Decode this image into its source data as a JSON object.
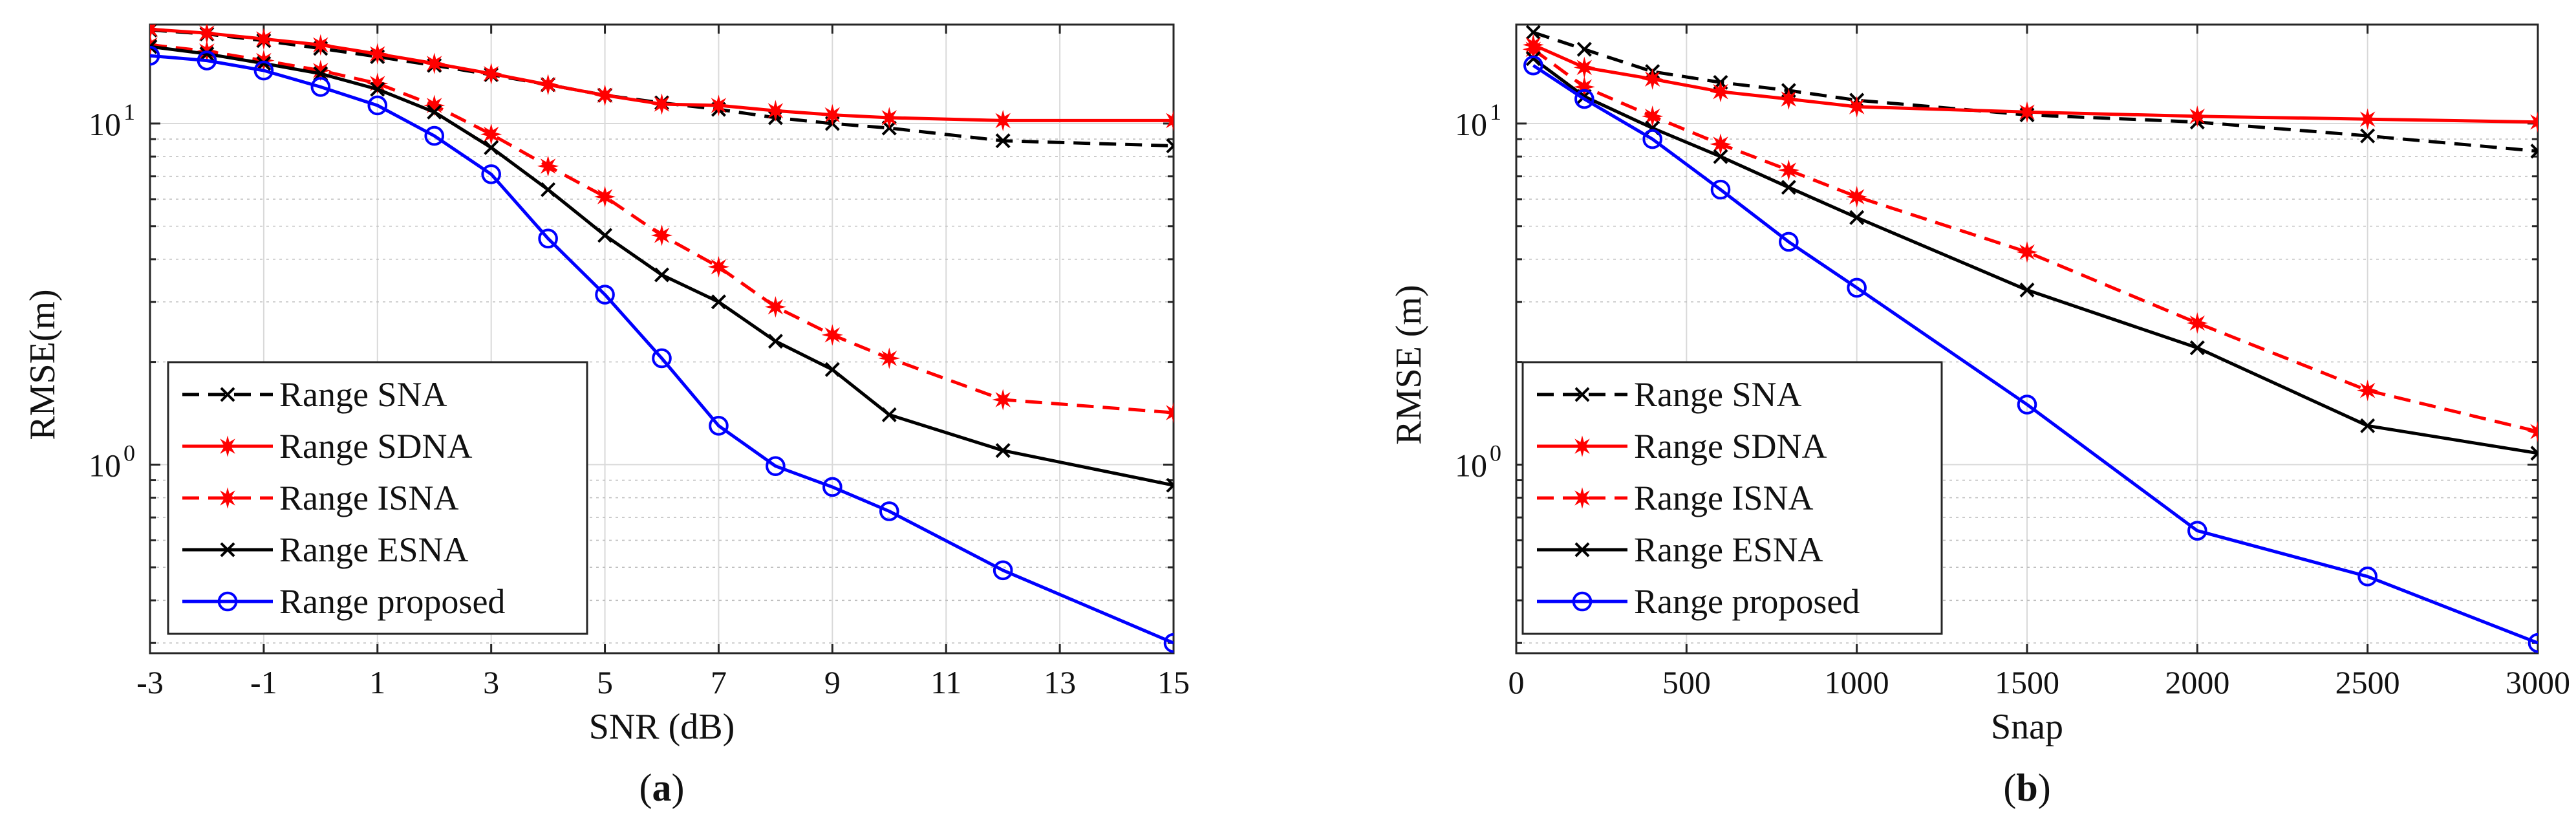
{
  "chart_data": [
    {
      "type": "line",
      "panel_label": "a",
      "xlabel": "SNR (dB)",
      "ylabel": "RMSE(m)",
      "yscale": "log",
      "xlim": [
        -3,
        15
      ],
      "ylim": [
        0.28,
        19.5
      ],
      "xticks": [
        -3,
        -1,
        1,
        3,
        5,
        7,
        9,
        11,
        13,
        15
      ],
      "xtick_labels": [
        "-3",
        "-1",
        "1",
        "3",
        "5",
        "7",
        "9",
        "11",
        "13",
        "15"
      ],
      "yticks": [
        {
          "base": "10",
          "exp": "0",
          "value": 1
        },
        {
          "base": "10",
          "exp": "1",
          "value": 10
        }
      ],
      "grid": true,
      "legend_position": "bottom-left",
      "series": [
        {
          "name": "Range SNA",
          "color": "#000000",
          "dash": "dashed",
          "marker": "x",
          "x": [
            -3,
            -2,
            -1,
            0,
            1,
            2,
            3,
            4,
            5,
            6,
            7,
            8,
            9,
            10,
            12,
            15
          ],
          "y": [
            18.8,
            18.3,
            17.5,
            16.6,
            15.7,
            14.8,
            13.9,
            13.0,
            12.1,
            11.5,
            11.0,
            10.4,
            10.0,
            9.7,
            8.9,
            8.6
          ]
        },
        {
          "name": "Range SDNA",
          "color": "#ff0000",
          "dash": "solid",
          "marker": "star",
          "x": [
            -3,
            -2,
            -1,
            0,
            1,
            2,
            3,
            4,
            5,
            6,
            7,
            8,
            9,
            10,
            12,
            15
          ],
          "y": [
            18.9,
            18.4,
            17.7,
            17.0,
            16.0,
            15.0,
            14.0,
            13.0,
            12.1,
            11.4,
            11.3,
            10.9,
            10.6,
            10.4,
            10.2,
            10.2
          ]
        },
        {
          "name": "Range ISNA",
          "color": "#ff0000",
          "dash": "dashed",
          "marker": "star",
          "x": [
            -3,
            -2,
            -1,
            0,
            1,
            2,
            3,
            4,
            5,
            6,
            7,
            8,
            9,
            10,
            12,
            15
          ],
          "y": [
            17.0,
            16.3,
            15.3,
            14.3,
            13.1,
            11.3,
            9.3,
            7.5,
            6.1,
            4.7,
            3.8,
            2.9,
            2.4,
            2.05,
            1.55,
            1.42
          ]
        },
        {
          "name": "Range ESNA",
          "color": "#000000",
          "dash": "solid",
          "marker": "x",
          "x": [
            -3,
            -2,
            -1,
            0,
            1,
            2,
            3,
            4,
            5,
            6,
            7,
            8,
            9,
            10,
            12,
            15
          ],
          "y": [
            16.8,
            16.0,
            15.0,
            14.0,
            12.6,
            10.8,
            8.5,
            6.4,
            4.7,
            3.6,
            3.0,
            2.3,
            1.9,
            1.4,
            1.1,
            0.87
          ]
        },
        {
          "name": "Range proposed",
          "color": "#0000ff",
          "dash": "solid",
          "marker": "circle",
          "x": [
            -3,
            -2,
            -1,
            0,
            1,
            2,
            3,
            4,
            5,
            6,
            7,
            8,
            9,
            10,
            12,
            15
          ],
          "y": [
            15.8,
            15.3,
            14.3,
            12.8,
            11.3,
            9.2,
            7.1,
            4.6,
            3.15,
            2.05,
            1.3,
            0.99,
            0.86,
            0.73,
            0.49,
            0.3
          ]
        }
      ]
    },
    {
      "type": "line",
      "panel_label": "b",
      "xlabel": "Snap",
      "ylabel": "RMSE (m)",
      "yscale": "log",
      "xlim": [
        0,
        3000
      ],
      "ylim": [
        0.28,
        19.5
      ],
      "xticks": [
        0,
        500,
        1000,
        1500,
        2000,
        2500,
        3000
      ],
      "xtick_labels": [
        "0",
        "500",
        "1000",
        "1500",
        "2000",
        "2500",
        "3000"
      ],
      "yticks": [
        {
          "base": "10",
          "exp": "0",
          "value": 1
        },
        {
          "base": "10",
          "exp": "1",
          "value": 10
        }
      ],
      "grid": true,
      "legend_position": "bottom-left",
      "series": [
        {
          "name": "Range SNA",
          "color": "#000000",
          "dash": "dashed",
          "marker": "x",
          "x": [
            50,
            200,
            400,
            600,
            800,
            1000,
            1500,
            2000,
            2500,
            3000
          ],
          "y": [
            18.5,
            16.5,
            14.2,
            13.2,
            12.5,
            11.7,
            10.6,
            10.1,
            9.2,
            8.3
          ]
        },
        {
          "name": "Range SDNA",
          "color": "#ff0000",
          "dash": "solid",
          "marker": "star",
          "x": [
            50,
            200,
            400,
            600,
            800,
            1000,
            1500,
            2000,
            2500,
            3000
          ],
          "y": [
            17.0,
            14.6,
            13.5,
            12.4,
            11.8,
            11.2,
            10.8,
            10.5,
            10.3,
            10.1
          ]
        },
        {
          "name": "Range ISNA",
          "color": "#ff0000",
          "dash": "dashed",
          "marker": "star",
          "x": [
            50,
            200,
            400,
            600,
            800,
            1000,
            1500,
            2000,
            2500,
            3000
          ],
          "y": [
            16.5,
            12.8,
            10.5,
            8.7,
            7.3,
            6.1,
            4.2,
            2.6,
            1.65,
            1.25
          ]
        },
        {
          "name": "Range ESNA",
          "color": "#000000",
          "dash": "solid",
          "marker": "x",
          "x": [
            50,
            200,
            400,
            600,
            800,
            1000,
            1500,
            2000,
            2500,
            3000
          ],
          "y": [
            15.5,
            12.0,
            9.7,
            8.0,
            6.5,
            5.3,
            3.25,
            2.2,
            1.3,
            1.08
          ]
        },
        {
          "name": "Range proposed",
          "color": "#0000ff",
          "dash": "solid",
          "marker": "circle",
          "x": [
            50,
            200,
            400,
            600,
            800,
            1000,
            1500,
            2000,
            2500,
            3000
          ],
          "y": [
            14.8,
            11.8,
            9.0,
            6.4,
            4.5,
            3.3,
            1.5,
            0.64,
            0.47,
            0.3
          ]
        }
      ]
    }
  ]
}
